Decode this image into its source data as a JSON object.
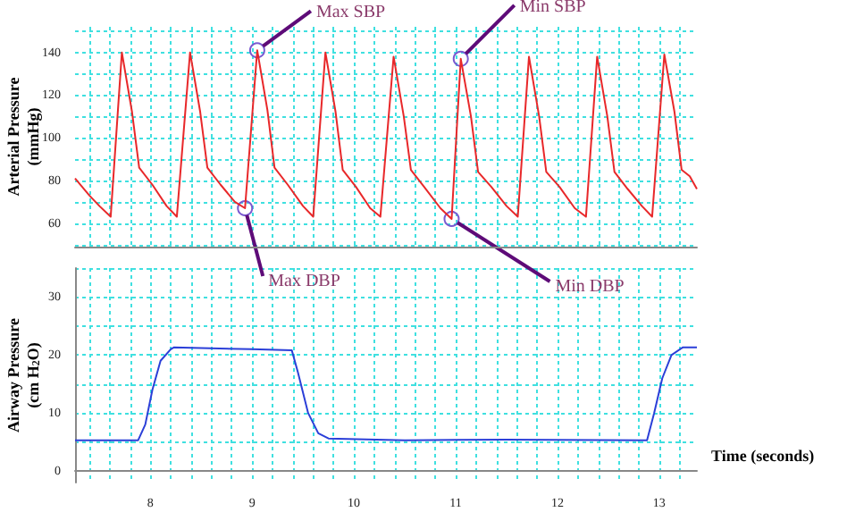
{
  "chart_data": [
    {
      "type": "line",
      "ylabel": "Arterial Pressure\n(mmHg)",
      "tick_labels": "y",
      "marker": "none",
      "grid": true,
      "xlim": [
        7.26,
        13.37
      ],
      "xticks": [
        {
          "value": 7.4,
          "label": null
        },
        {
          "value": 7.6,
          "label": null
        },
        {
          "value": 7.8,
          "label": null
        },
        {
          "value": 8,
          "label": null
        },
        {
          "value": 8.2,
          "label": null
        },
        {
          "value": 8.4,
          "label": null
        },
        {
          "value": 8.6,
          "label": null
        },
        {
          "value": 8.8,
          "label": null
        },
        {
          "value": 9,
          "label": null
        },
        {
          "value": 9.2,
          "label": null
        },
        {
          "value": 9.4,
          "label": null
        },
        {
          "value": 9.6,
          "label": null
        },
        {
          "value": 9.8,
          "label": null
        },
        {
          "value": 10,
          "label": null
        },
        {
          "value": 10.2,
          "label": null
        },
        {
          "value": 10.4,
          "label": null
        },
        {
          "value": 10.6,
          "label": null
        },
        {
          "value": 10.8,
          "label": null
        },
        {
          "value": 11,
          "label": null
        },
        {
          "value": 11.2,
          "label": null
        },
        {
          "value": 11.4,
          "label": null
        },
        {
          "value": 11.6,
          "label": null
        },
        {
          "value": 11.8,
          "label": null
        },
        {
          "value": 12,
          "label": null
        },
        {
          "value": 12.2,
          "label": null
        },
        {
          "value": 12.4,
          "label": null
        },
        {
          "value": 12.6,
          "label": null
        },
        {
          "value": 12.8,
          "label": null
        },
        {
          "value": 13,
          "label": null
        },
        {
          "value": 13.2,
          "label": null
        }
      ],
      "ylim": [
        49,
        152
      ],
      "yticks": [
        {
          "value": 50,
          "label": null
        },
        60,
        {
          "value": 70,
          "label": null
        },
        80,
        {
          "value": 90,
          "label": null
        },
        100,
        {
          "value": 110,
          "label": null
        },
        120,
        {
          "value": 130,
          "label": null
        },
        140,
        {
          "value": 150,
          "label": null
        }
      ],
      "x": [
        7.26,
        7.4,
        7.5,
        7.61,
        7.72,
        7.82,
        7.89,
        8.02,
        8.16,
        8.26,
        8.39,
        8.49,
        8.56,
        8.69,
        8.83,
        8.93,
        9.05,
        9.15,
        9.22,
        9.35,
        9.5,
        9.6,
        9.72,
        9.82,
        9.89,
        10.02,
        10.16,
        10.26,
        10.39,
        10.49,
        10.56,
        10.69,
        10.85,
        10.96,
        11.05,
        11.15,
        11.22,
        11.35,
        11.5,
        11.61,
        11.72,
        11.82,
        11.89,
        12.02,
        12.17,
        12.28,
        12.39,
        12.49,
        12.56,
        12.69,
        12.83,
        12.93,
        13.05,
        13.15,
        13.22,
        13.3,
        13.37
      ],
      "series": [
        {
          "color": "#e8282a",
          "values": [
            81,
            73,
            68,
            63,
            140,
            112,
            86,
            78,
            68,
            63,
            140,
            112,
            86,
            78,
            70,
            67,
            141,
            113,
            86,
            78,
            68,
            63,
            140,
            112,
            85,
            77,
            67,
            63,
            138,
            110,
            85,
            77,
            67,
            62,
            137,
            110,
            84,
            77,
            68,
            63,
            138,
            110,
            84,
            77,
            67,
            63,
            138,
            110,
            84,
            76,
            68,
            63,
            139,
            112,
            85,
            82,
            76
          ]
        }
      ],
      "annotations": [
        {
          "text": "Max SBP",
          "x": 9.05,
          "y": 141
        },
        {
          "text": "Min SBP",
          "x": 11.05,
          "y": 137
        },
        {
          "text": "Max DBP",
          "x": 8.93,
          "y": 67
        },
        {
          "text": "Min DBP",
          "x": 10.96,
          "y": 62
        }
      ]
    },
    {
      "type": "line",
      "ylabel": "Airway Pressure\n(cm H$_{2}$O)",
      "xlabel": "Time (seconds)",
      "marker": "none",
      "grid": true,
      "xlim": [
        7.26,
        13.37
      ],
      "xticks": [
        {
          "value": 7.4,
          "label": null
        },
        {
          "value": 7.6,
          "label": null
        },
        {
          "value": 7.8,
          "label": null
        },
        8,
        {
          "value": 8.2,
          "label": null
        },
        {
          "value": 8.4,
          "label": null
        },
        {
          "value": 8.6,
          "label": null
        },
        {
          "value": 8.8,
          "label": null
        },
        9,
        {
          "value": 9.2,
          "label": null
        },
        {
          "value": 9.4,
          "label": null
        },
        {
          "value": 9.6,
          "label": null
        },
        {
          "value": 9.8,
          "label": null
        },
        10,
        {
          "value": 10.2,
          "label": null
        },
        {
          "value": 10.4,
          "label": null
        },
        {
          "value": 10.6,
          "label": null
        },
        {
          "value": 10.8,
          "label": null
        },
        11,
        {
          "value": 11.2,
          "label": null
        },
        {
          "value": 11.4,
          "label": null
        },
        {
          "value": 11.6,
          "label": null
        },
        {
          "value": 11.8,
          "label": null
        },
        12,
        {
          "value": 12.2,
          "label": null
        },
        {
          "value": 12.4,
          "label": null
        },
        {
          "value": 12.6,
          "label": null
        },
        {
          "value": 12.8,
          "label": null
        },
        13,
        {
          "value": 13.2,
          "label": null
        }
      ],
      "ylim": [
        -2,
        35
      ],
      "yticks": [
        0,
        {
          "value": 5,
          "label": null
        },
        10,
        {
          "value": 15,
          "label": null
        },
        20,
        {
          "value": 25,
          "label": null
        },
        30,
        {
          "value": 35,
          "label": null
        }
      ],
      "x": [
        7.26,
        7.88,
        7.95,
        8.02,
        8.1,
        8.2,
        8.23,
        9.0,
        9.39,
        9.45,
        9.55,
        9.65,
        9.75,
        10.5,
        11.5,
        12.88,
        12.95,
        13.03,
        13.12,
        13.23,
        13.37
      ],
      "series": [
        {
          "color": "#2b3fd8",
          "values": [
            5.3,
            5.3,
            8,
            14,
            19,
            21,
            21.3,
            21,
            20.8,
            17,
            10,
            6.5,
            5.6,
            5.3,
            5.4,
            5.3,
            10,
            16,
            20,
            21.3,
            21.3
          ]
        }
      ]
    }
  ]
}
